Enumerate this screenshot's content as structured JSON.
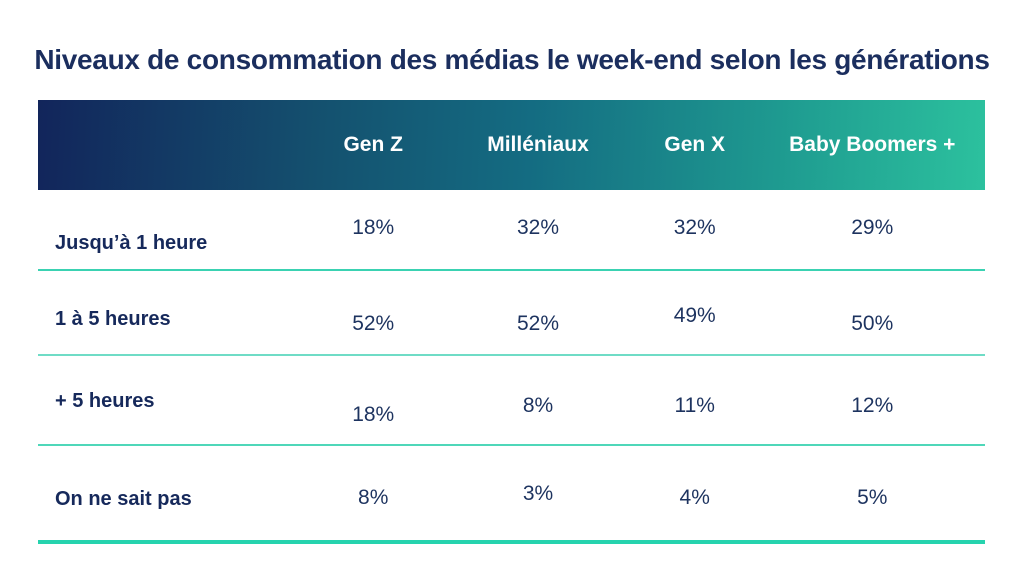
{
  "title": "Niveaux de consommation des médias le week-end selon les générations",
  "table": {
    "columns": [
      "Gen Z",
      "Milléniaux",
      "Gen X",
      "Baby Boomers +"
    ],
    "rows": [
      {
        "label": "Jusqu’à 1 heure",
        "values": [
          "18%",
          "32%",
          "32%",
          "29%"
        ]
      },
      {
        "label": "1 à 5 heures",
        "values": [
          "52%",
          "52%",
          "49%",
          "50%"
        ]
      },
      {
        "label": "+ 5 heures",
        "values": [
          "18%",
          "8%",
          "11%",
          "12%"
        ]
      },
      {
        "label": "On ne sait pas",
        "values": [
          "8%",
          "3%",
          "4%",
          "5%"
        ]
      }
    ]
  },
  "colors": {
    "title_text": "#1B2E5E",
    "label_text": "#16295B",
    "value_text": "#1D335F",
    "header_text": "#FFFFFF",
    "header_gradient_start": "#12255B",
    "header_gradient_end": "#2CC19E",
    "row_divider": "#6FDCC6",
    "bottom_bar": "#26D3AE",
    "background": "#FFFFFF"
  },
  "chart_data": {
    "type": "table",
    "title": "Niveaux de consommation des médias le week-end selon les générations",
    "categories": [
      "Gen Z",
      "Milléniaux",
      "Gen X",
      "Baby Boomers +"
    ],
    "series": [
      {
        "name": "Jusqu’à 1 heure",
        "values": [
          18,
          32,
          32,
          29
        ]
      },
      {
        "name": "1 à 5 heures",
        "values": [
          52,
          52,
          49,
          50
        ]
      },
      {
        "name": "+ 5 heures",
        "values": [
          18,
          8,
          11,
          12
        ]
      },
      {
        "name": "On ne sait pas",
        "values": [
          8,
          3,
          4,
          5
        ]
      }
    ],
    "unit": "%",
    "legend_position": "none",
    "grid": false
  }
}
